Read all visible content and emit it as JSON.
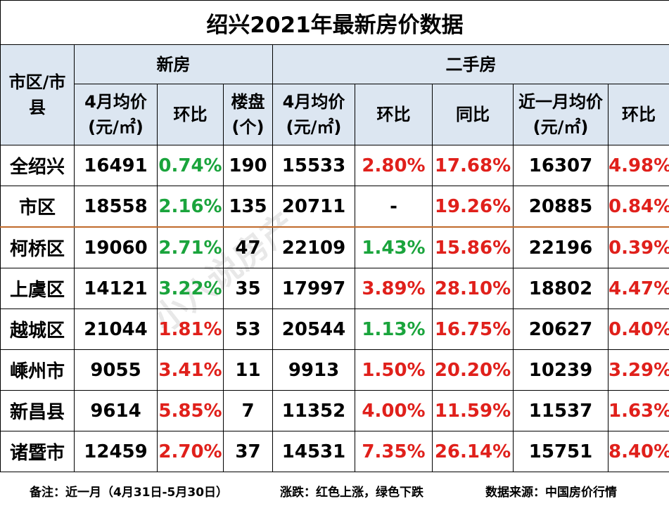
{
  "title": "绍兴2021年最新房价数据",
  "header": {
    "region": "市区/市县",
    "new_house": "新房",
    "second_hand": "二手房",
    "new_price": "4月均价(元/㎡)",
    "new_mom": "环比",
    "new_projects": "楼盘(个)",
    "sh_price": "4月均价(元/㎡)",
    "sh_mom": "环比",
    "sh_yoy": "同比",
    "sh_recent_price": "近一月均价(元/㎡)",
    "sh_recent_mom": "环比"
  },
  "rows": [
    {
      "region": "全绍兴",
      "new_price": "16491",
      "new_mom": "0.74%",
      "new_mom_trend": "down",
      "projects": "190",
      "sh_price": "15533",
      "sh_mom": "2.80%",
      "sh_mom_trend": "up",
      "sh_yoy": "17.68%",
      "recent_price": "16307",
      "recent_mom": "4.98%"
    },
    {
      "region": "市区",
      "new_price": "18558",
      "new_mom": "2.16%",
      "new_mom_trend": "down",
      "projects": "135",
      "sh_price": "20711",
      "sh_mom": "-",
      "sh_mom_trend": "none",
      "sh_yoy": "19.26%",
      "recent_price": "20885",
      "recent_mom": "0.84%"
    },
    {
      "region": "柯桥区",
      "new_price": "19060",
      "new_mom": "2.71%",
      "new_mom_trend": "down",
      "projects": "47",
      "sh_price": "22109",
      "sh_mom": "1.43%",
      "sh_mom_trend": "down",
      "sh_yoy": "15.86%",
      "recent_price": "22196",
      "recent_mom": "0.39%"
    },
    {
      "region": "上虞区",
      "new_price": "14121",
      "new_mom": "3.22%",
      "new_mom_trend": "down",
      "projects": "35",
      "sh_price": "17997",
      "sh_mom": "3.89%",
      "sh_mom_trend": "up",
      "sh_yoy": "28.10%",
      "recent_price": "18802",
      "recent_mom": "4.47%"
    },
    {
      "region": "越城区",
      "new_price": "21044",
      "new_mom": "1.81%",
      "new_mom_trend": "up",
      "projects": "53",
      "sh_price": "20544",
      "sh_mom": "1.13%",
      "sh_mom_trend": "down",
      "sh_yoy": "16.75%",
      "recent_price": "20627",
      "recent_mom": "0.40%"
    },
    {
      "region": "嵊州市",
      "new_price": "9055",
      "new_mom": "3.41%",
      "new_mom_trend": "up",
      "projects": "11",
      "sh_price": "9913",
      "sh_mom": "1.50%",
      "sh_mom_trend": "up",
      "sh_yoy": "20.20%",
      "recent_price": "10239",
      "recent_mom": "3.29%"
    },
    {
      "region": "新昌县",
      "new_price": "9614",
      "new_mom": "5.85%",
      "new_mom_trend": "up",
      "projects": "7",
      "sh_price": "11352",
      "sh_mom": "4.00%",
      "sh_mom_trend": "up",
      "sh_yoy": "11.59%",
      "recent_price": "11537",
      "recent_mom": "1.63%"
    },
    {
      "region": "诸暨市",
      "new_price": "12459",
      "new_mom": "2.70%",
      "new_mom_trend": "up",
      "projects": "37",
      "sh_price": "14531",
      "sh_mom": "7.35%",
      "sh_mom_trend": "up",
      "sh_yoy": "26.14%",
      "recent_price": "15751",
      "recent_mom": "8.40%"
    }
  ],
  "footer": {
    "note": "备注：近一月（4月31日-5月30日）",
    "legend": "涨跌：红色上涨，绿色下跌",
    "source": "数据来源：中国房价行情"
  },
  "watermark": "小八说房产",
  "colors": {
    "up": "#e0201b",
    "down": "#1aa43c",
    "header_bg": "#dce6f1",
    "separator": "#c06a2b"
  }
}
